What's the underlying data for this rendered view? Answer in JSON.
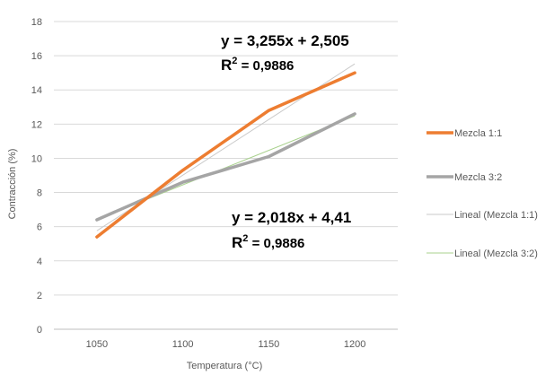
{
  "chart_data": {
    "type": "line",
    "categories": [
      1050,
      1100,
      1150,
      1200
    ],
    "xlabel": "Temperatura (°C)",
    "ylabel": "Contracción (%)",
    "ylim": [
      0,
      18
    ],
    "yticks": [
      0,
      2,
      4,
      6,
      8,
      10,
      12,
      14,
      16,
      18
    ],
    "grid": true,
    "legend_position": "right",
    "series": [
      {
        "name": "Mezcla 1:1",
        "values": [
          5.4,
          9.3,
          12.8,
          15.0
        ],
        "color": "#ED7D31",
        "kind": "data"
      },
      {
        "name": "Mezcla 3:2",
        "values": [
          6.4,
          8.6,
          10.1,
          12.6
        ],
        "color": "#A5A5A5",
        "kind": "data"
      },
      {
        "name": "Lineal (Mezcla 1:1)",
        "slope": 3.255,
        "intercept": 2.505,
        "color": "#C9C9C9",
        "kind": "trend"
      },
      {
        "name": "Lineal (Mezcla 3:2)",
        "slope": 2.018,
        "intercept": 4.41,
        "color": "#A9D18E",
        "kind": "trend"
      }
    ],
    "annotations": {
      "eq1": {
        "text": "y = 3,255x + 2,505",
        "r2_prefix": "R",
        "r2_sup": "2",
        "r2_value": " = 0,9886"
      },
      "eq2": {
        "text": "y = 2,018x + 4,41",
        "r2_prefix": "R",
        "r2_sup": "2",
        "r2_value": " = 0,9886"
      }
    }
  }
}
